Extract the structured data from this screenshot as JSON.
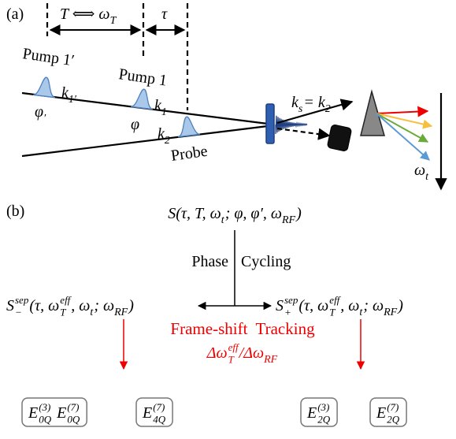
{
  "panel_a": {
    "label": "(a)",
    "delay_T": {
      "text": "T ⟺ ω",
      "sub": "T"
    },
    "delay_tau": "τ",
    "pump_1_prime": {
      "name": "Pump 1′",
      "wavevector": {
        "base": "k",
        "sub": "1′"
      },
      "phase": {
        "base": "φ",
        "sub": "′"
      }
    },
    "pump_1": {
      "name": "Pump 1",
      "wavevector": {
        "base": "k",
        "sub": "1"
      },
      "phase": "φ"
    },
    "probe": {
      "name": "Probe",
      "wavevector": {
        "base": "k",
        "sub": "2"
      }
    },
    "signal": {
      "base": "k",
      "sub": "s",
      "eq": " = k",
      "sub2": "2"
    },
    "detection_axis": {
      "base": "ω",
      "sub": "t"
    }
  },
  "panel_b": {
    "label": "(b)",
    "signal": [
      "S(τ, T, ω",
      "t",
      "; φ, φ′, ω",
      "RF",
      ")"
    ],
    "phase_cycling": [
      "Phase",
      "Cycling"
    ],
    "separated": [
      {
        "base": "S",
        "sup": "sep",
        "sub": "−",
        "args": [
          "(τ, ω",
          "eff",
          "T",
          ", ω",
          "t",
          "; ω",
          "RF",
          ")"
        ]
      },
      {
        "base": "S",
        "sup": "sep",
        "sub": "+",
        "args": [
          "(τ, ω",
          "eff",
          "T",
          ", ω",
          "t",
          "; ω",
          "RF",
          ")"
        ]
      }
    ],
    "tracking": {
      "title": "Frame-shift  Tracking",
      "ratio": [
        "Δω",
        "eff",
        "T",
        "/Δω",
        "RF"
      ]
    },
    "components": [
      [
        {
          "base": "E",
          "sup": "(3)",
          "sub": "0Q"
        },
        {
          "base": "E",
          "sup": "(7)",
          "sub": "0Q"
        }
      ],
      [
        {
          "base": "E",
          "sup": "(7)",
          "sub": "4Q"
        }
      ],
      [
        {
          "base": "E",
          "sup": "(3)",
          "sub": "2Q"
        }
      ],
      [
        {
          "base": "E",
          "sup": "(7)",
          "sub": "2Q"
        }
      ]
    ]
  }
}
